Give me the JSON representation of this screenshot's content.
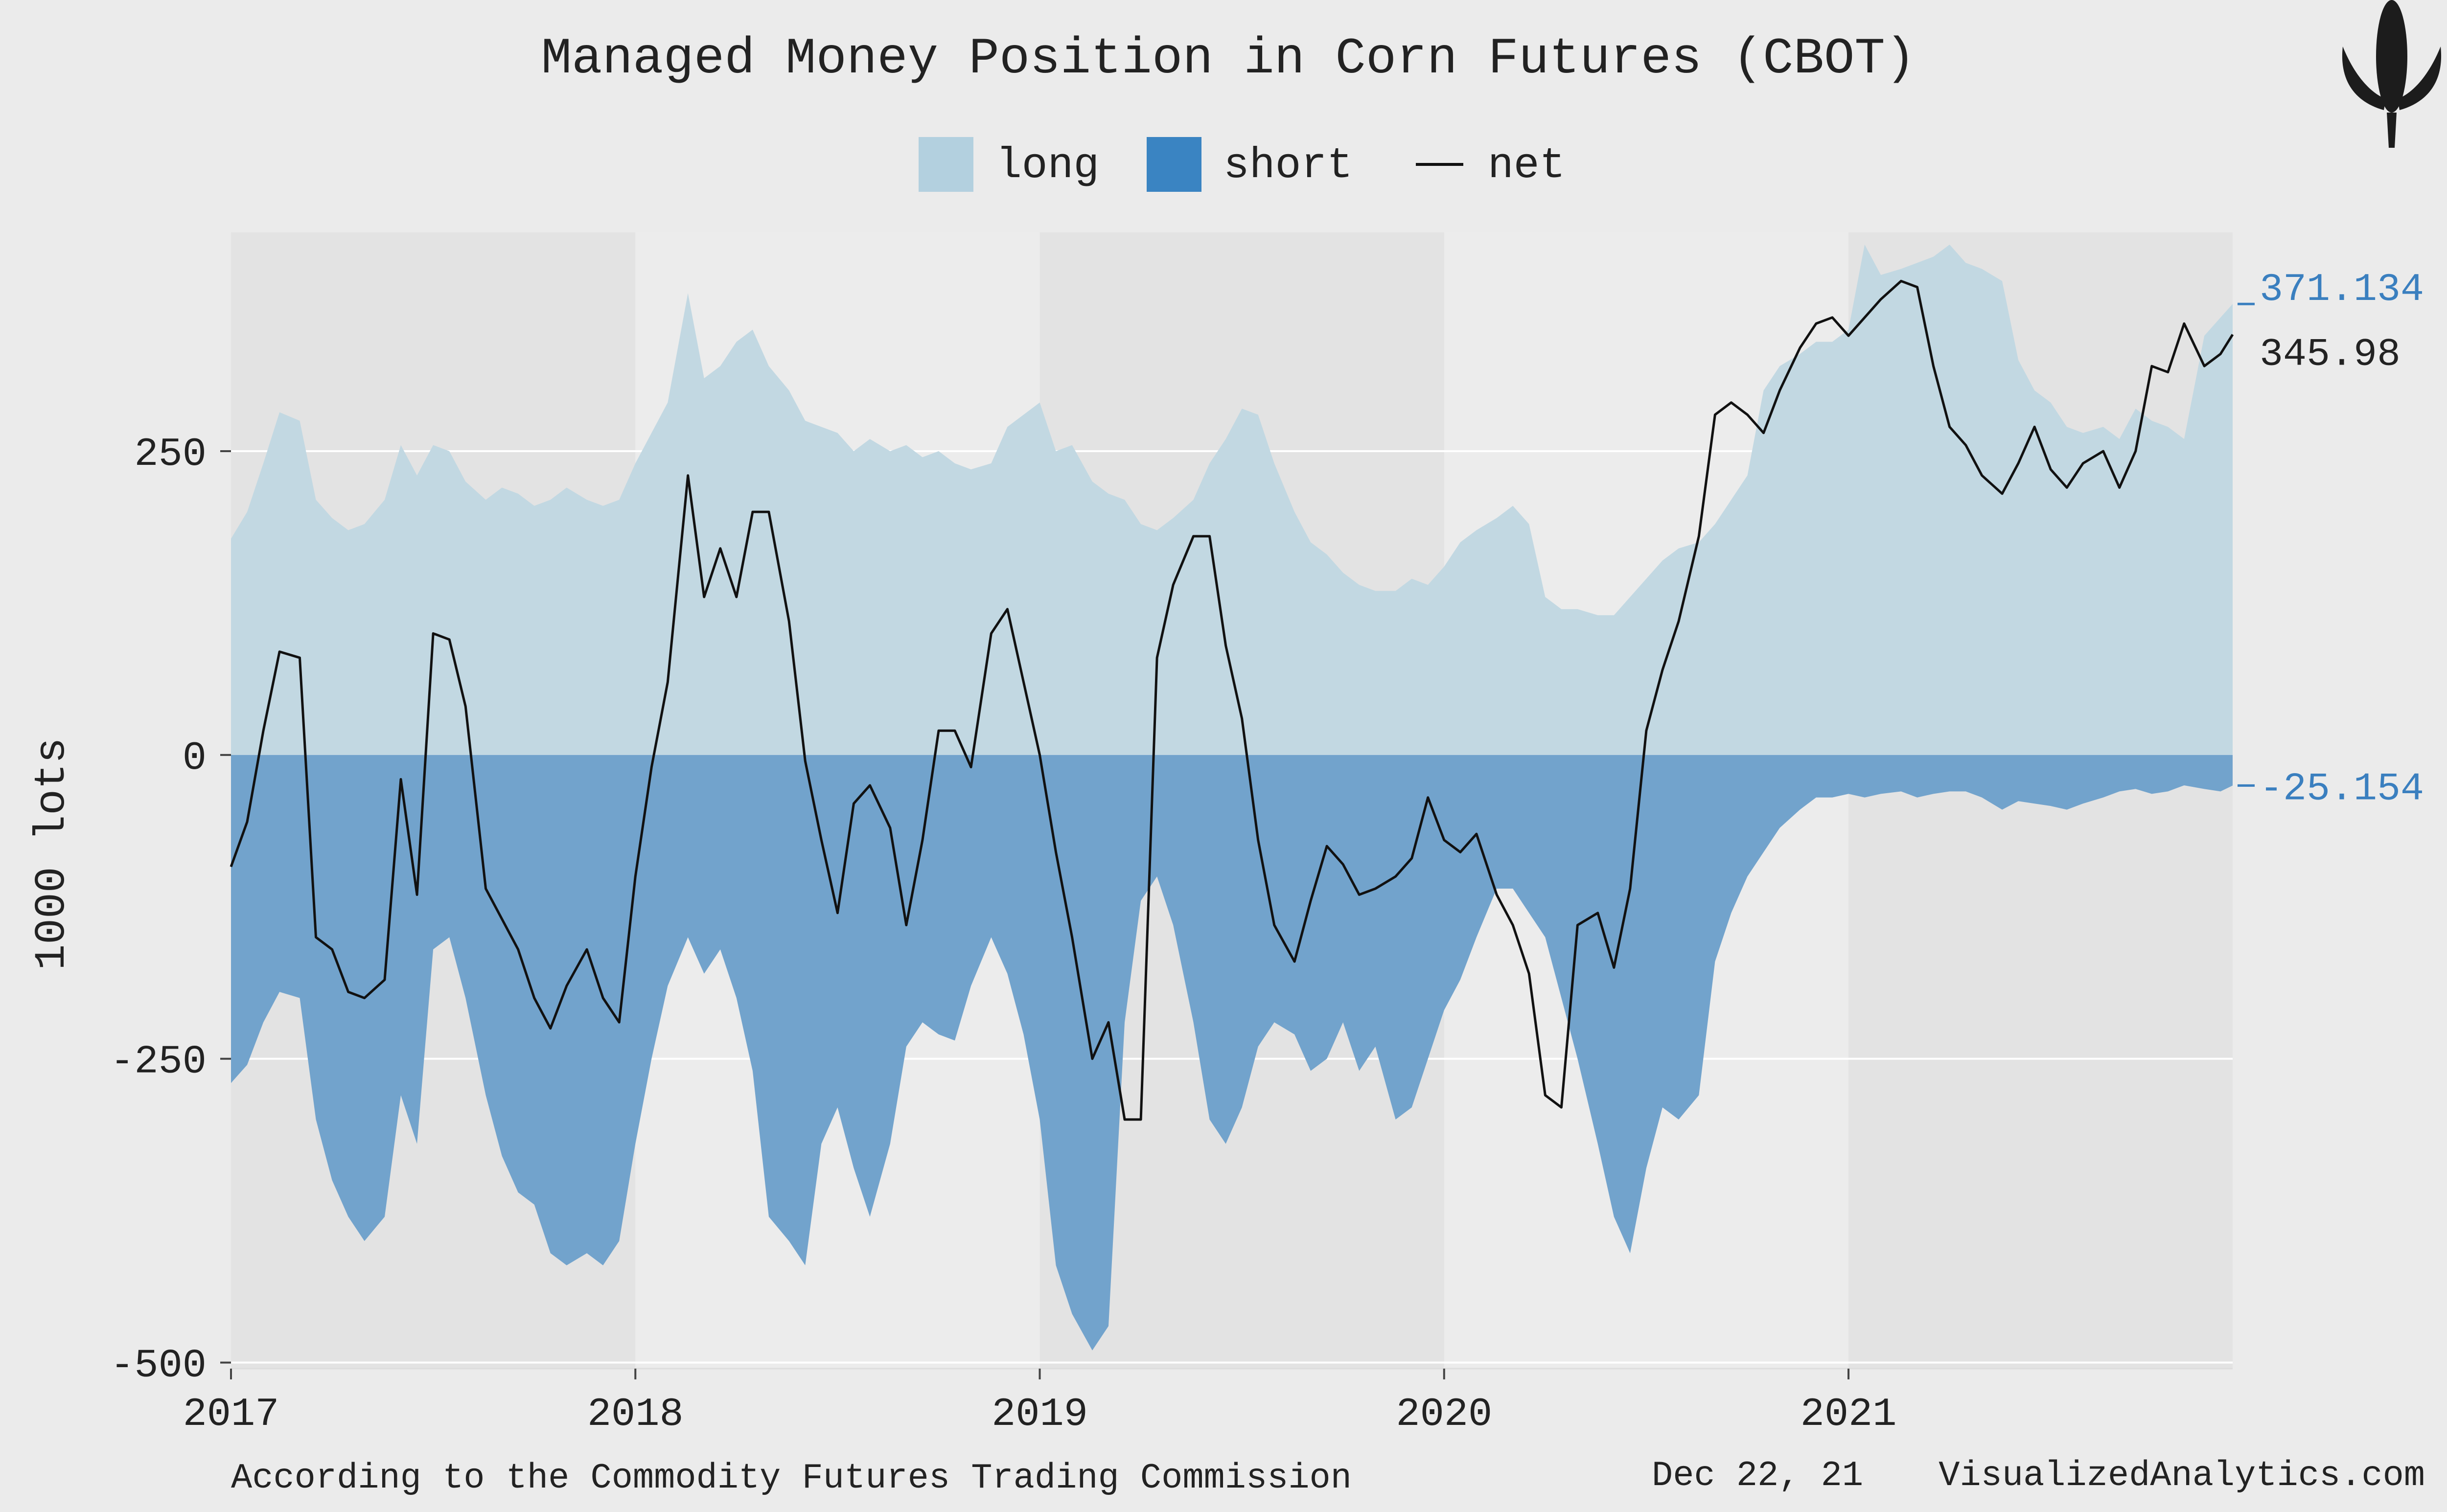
{
  "chart_data": {
    "type": "area",
    "title": "Managed Money Position in Corn Futures (CBOT)",
    "ylabel": "1000 lots",
    "xlabel": "",
    "ylim": [
      -505,
      430
    ],
    "xlim": [
      2017.0,
      2021.95
    ],
    "y_ticks": [
      -500,
      -250,
      0,
      250
    ],
    "y_tick_labels": [
      "-500",
      "-250",
      "0",
      "250"
    ],
    "x_ticks": [
      2017,
      2018,
      2019,
      2020,
      2021
    ],
    "x_tick_labels": [
      "2017",
      "2018",
      "2019",
      "2020",
      "2021"
    ],
    "grid": true,
    "legend": {
      "position": "top-center",
      "entries": [
        {
          "label": "long",
          "kind": "area",
          "color": "#b3d0df"
        },
        {
          "label": "short",
          "kind": "area",
          "color": "#3a84c2"
        },
        {
          "label": "net",
          "kind": "line",
          "color": "#111111"
        }
      ]
    },
    "colors": {
      "long_fill": "#c2d8e2",
      "short_fill": "#72a3cc",
      "net_line": "#111111",
      "label_blue": "#3a7fbf"
    },
    "end_labels": {
      "long": "371.134",
      "net": "345.98",
      "short": "-25.154"
    },
    "series": [
      {
        "name": "long",
        "x": [
          2017.0,
          2017.04,
          2017.08,
          2017.12,
          2017.17,
          2017.21,
          2017.25,
          2017.29,
          2017.33,
          2017.38,
          2017.42,
          2017.46,
          2017.5,
          2017.54,
          2017.58,
          2017.63,
          2017.67,
          2017.71,
          2017.75,
          2017.79,
          2017.83,
          2017.88,
          2017.92,
          2017.96,
          2018.0,
          2018.04,
          2018.08,
          2018.13,
          2018.17,
          2018.21,
          2018.25,
          2018.29,
          2018.33,
          2018.38,
          2018.42,
          2018.46,
          2018.5,
          2018.54,
          2018.58,
          2018.63,
          2018.67,
          2018.71,
          2018.75,
          2018.79,
          2018.83,
          2018.88,
          2018.92,
          2018.96,
          2019.0,
          2019.04,
          2019.08,
          2019.13,
          2019.17,
          2019.21,
          2019.25,
          2019.29,
          2019.33,
          2019.38,
          2019.42,
          2019.46,
          2019.5,
          2019.54,
          2019.58,
          2019.63,
          2019.67,
          2019.71,
          2019.75,
          2019.79,
          2019.83,
          2019.88,
          2019.92,
          2019.96,
          2020.0,
          2020.04,
          2020.08,
          2020.13,
          2020.17,
          2020.21,
          2020.25,
          2020.29,
          2020.33,
          2020.38,
          2020.42,
          2020.46,
          2020.5,
          2020.54,
          2020.58,
          2020.63,
          2020.67,
          2020.71,
          2020.75,
          2020.79,
          2020.83,
          2020.88,
          2020.92,
          2020.96,
          2021.0,
          2021.04,
          2021.08,
          2021.13,
          2021.17,
          2021.21,
          2021.25,
          2021.29,
          2021.33,
          2021.38,
          2021.42,
          2021.46,
          2021.5,
          2021.54,
          2021.58,
          2021.63,
          2021.67,
          2021.71,
          2021.75,
          2021.79,
          2021.83,
          2021.88,
          2021.92,
          2021.95
        ],
        "values": [
          178,
          200,
          240,
          282,
          275,
          210,
          195,
          185,
          190,
          210,
          255,
          230,
          255,
          250,
          225,
          210,
          220,
          215,
          205,
          210,
          220,
          210,
          205,
          210,
          240,
          265,
          290,
          380,
          310,
          320,
          340,
          350,
          320,
          300,
          275,
          270,
          265,
          250,
          260,
          250,
          255,
          245,
          250,
          240,
          235,
          240,
          270,
          280,
          290,
          250,
          255,
          225,
          215,
          210,
          190,
          185,
          195,
          210,
          240,
          260,
          285,
          280,
          240,
          200,
          175,
          165,
          150,
          140,
          135,
          135,
          145,
          140,
          155,
          175,
          185,
          195,
          205,
          190,
          130,
          120,
          120,
          115,
          115,
          130,
          145,
          160,
          170,
          175,
          190,
          210,
          230,
          300,
          320,
          330,
          340,
          340,
          350,
          420,
          395,
          400,
          405,
          410,
          420,
          405,
          400,
          390,
          325,
          300,
          290,
          270,
          265,
          270,
          260,
          285,
          275,
          270,
          260,
          345,
          360,
          371.134
        ]
      },
      {
        "name": "short",
        "x": [
          2017.0,
          2017.04,
          2017.08,
          2017.12,
          2017.17,
          2017.21,
          2017.25,
          2017.29,
          2017.33,
          2017.38,
          2017.42,
          2017.46,
          2017.5,
          2017.54,
          2017.58,
          2017.63,
          2017.67,
          2017.71,
          2017.75,
          2017.79,
          2017.83,
          2017.88,
          2017.92,
          2017.96,
          2018.0,
          2018.04,
          2018.08,
          2018.13,
          2018.17,
          2018.21,
          2018.25,
          2018.29,
          2018.33,
          2018.38,
          2018.42,
          2018.46,
          2018.5,
          2018.54,
          2018.58,
          2018.63,
          2018.67,
          2018.71,
          2018.75,
          2018.79,
          2018.83,
          2018.88,
          2018.92,
          2018.96,
          2019.0,
          2019.04,
          2019.08,
          2019.13,
          2019.17,
          2019.21,
          2019.25,
          2019.29,
          2019.33,
          2019.38,
          2019.42,
          2019.46,
          2019.5,
          2019.54,
          2019.58,
          2019.63,
          2019.67,
          2019.71,
          2019.75,
          2019.79,
          2019.83,
          2019.88,
          2019.92,
          2019.96,
          2020.0,
          2020.04,
          2020.08,
          2020.13,
          2020.17,
          2020.21,
          2020.25,
          2020.29,
          2020.33,
          2020.38,
          2020.42,
          2020.46,
          2020.5,
          2020.54,
          2020.58,
          2020.63,
          2020.67,
          2020.71,
          2020.75,
          2020.79,
          2020.83,
          2020.88,
          2020.92,
          2020.96,
          2021.0,
          2021.04,
          2021.08,
          2021.13,
          2021.17,
          2021.21,
          2021.25,
          2021.29,
          2021.33,
          2021.38,
          2021.42,
          2021.46,
          2021.5,
          2021.54,
          2021.58,
          2021.63,
          2021.67,
          2021.71,
          2021.75,
          2021.79,
          2021.83,
          2021.88,
          2021.92,
          2021.95
        ],
        "values": [
          -270,
          -255,
          -220,
          -195,
          -200,
          -300,
          -350,
          -380,
          -400,
          -380,
          -280,
          -320,
          -160,
          -150,
          -200,
          -280,
          -330,
          -360,
          -370,
          -410,
          -420,
          -410,
          -420,
          -400,
          -320,
          -250,
          -190,
          -150,
          -180,
          -160,
          -200,
          -260,
          -380,
          -400,
          -420,
          -320,
          -290,
          -340,
          -380,
          -320,
          -240,
          -220,
          -230,
          -235,
          -190,
          -150,
          -180,
          -230,
          -300,
          -420,
          -460,
          -490,
          -470,
          -220,
          -120,
          -100,
          -140,
          -220,
          -300,
          -320,
          -290,
          -240,
          -220,
          -230,
          -260,
          -250,
          -220,
          -260,
          -240,
          -300,
          -290,
          -250,
          -210,
          -185,
          -150,
          -110,
          -110,
          -130,
          -150,
          -200,
          -250,
          -320,
          -380,
          -410,
          -340,
          -290,
          -300,
          -280,
          -170,
          -130,
          -100,
          -80,
          -60,
          -45,
          -35,
          -35,
          -32,
          -35,
          -32,
          -30,
          -35,
          -32,
          -30,
          -30,
          -35,
          -45,
          -38,
          -40,
          -42,
          -45,
          -40,
          -35,
          -30,
          -28,
          -32,
          -30,
          -25,
          -28,
          -30,
          -25.154
        ]
      },
      {
        "name": "net",
        "x": [
          2017.0,
          2017.04,
          2017.08,
          2017.12,
          2017.17,
          2017.21,
          2017.25,
          2017.29,
          2017.33,
          2017.38,
          2017.42,
          2017.46,
          2017.5,
          2017.54,
          2017.58,
          2017.63,
          2017.67,
          2017.71,
          2017.75,
          2017.79,
          2017.83,
          2017.88,
          2017.92,
          2017.96,
          2018.0,
          2018.04,
          2018.08,
          2018.13,
          2018.17,
          2018.21,
          2018.25,
          2018.29,
          2018.33,
          2018.38,
          2018.42,
          2018.46,
          2018.5,
          2018.54,
          2018.58,
          2018.63,
          2018.67,
          2018.71,
          2018.75,
          2018.79,
          2018.83,
          2018.88,
          2018.92,
          2018.96,
          2019.0,
          2019.04,
          2019.08,
          2019.13,
          2019.17,
          2019.21,
          2019.25,
          2019.29,
          2019.33,
          2019.38,
          2019.42,
          2019.46,
          2019.5,
          2019.54,
          2019.58,
          2019.63,
          2019.67,
          2019.71,
          2019.75,
          2019.79,
          2019.83,
          2019.88,
          2019.92,
          2019.96,
          2020.0,
          2020.04,
          2020.08,
          2020.13,
          2020.17,
          2020.21,
          2020.25,
          2020.29,
          2020.33,
          2020.38,
          2020.42,
          2020.46,
          2020.5,
          2020.54,
          2020.58,
          2020.63,
          2020.67,
          2020.71,
          2020.75,
          2020.79,
          2020.83,
          2020.88,
          2020.92,
          2020.96,
          2021.0,
          2021.04,
          2021.08,
          2021.13,
          2021.17,
          2021.21,
          2021.25,
          2021.29,
          2021.33,
          2021.38,
          2021.42,
          2021.46,
          2021.5,
          2021.54,
          2021.58,
          2021.63,
          2021.67,
          2021.71,
          2021.75,
          2021.79,
          2021.83,
          2021.88,
          2021.92,
          2021.95
        ],
        "values": [
          -92,
          -55,
          20,
          85,
          80,
          -150,
          -160,
          -195,
          -200,
          -185,
          -20,
          -115,
          100,
          95,
          40,
          -110,
          -135,
          -160,
          -200,
          -225,
          -190,
          -160,
          -200,
          -220,
          -100,
          -10,
          60,
          230,
          130,
          170,
          130,
          200,
          200,
          110,
          -5,
          -70,
          -130,
          -40,
          -25,
          -60,
          -140,
          -70,
          20,
          20,
          -10,
          100,
          120,
          60,
          0,
          -80,
          -150,
          -250,
          -220,
          -300,
          -300,
          80,
          140,
          180,
          180,
          90,
          30,
          -70,
          -140,
          -170,
          -120,
          -75,
          -90,
          -115,
          -110,
          -100,
          -85,
          -35,
          -70,
          -80,
          -65,
          -115,
          -140,
          -180,
          -280,
          -290,
          -140,
          -130,
          -175,
          -110,
          20,
          70,
          110,
          180,
          280,
          290,
          280,
          265,
          300,
          335,
          355,
          360,
          345,
          360,
          375,
          390,
          385,
          320,
          270,
          255,
          230,
          215,
          240,
          270,
          235,
          220,
          240,
          250,
          220,
          250,
          320,
          315,
          355,
          320,
          330,
          345.98
        ]
      }
    ]
  },
  "footer": {
    "source": "According to the Commodity Futures Trading Commission",
    "date": "Dec 22, 21",
    "site": "VisualizedAnalytics.com"
  },
  "logo": {
    "icon": "corn-icon"
  }
}
